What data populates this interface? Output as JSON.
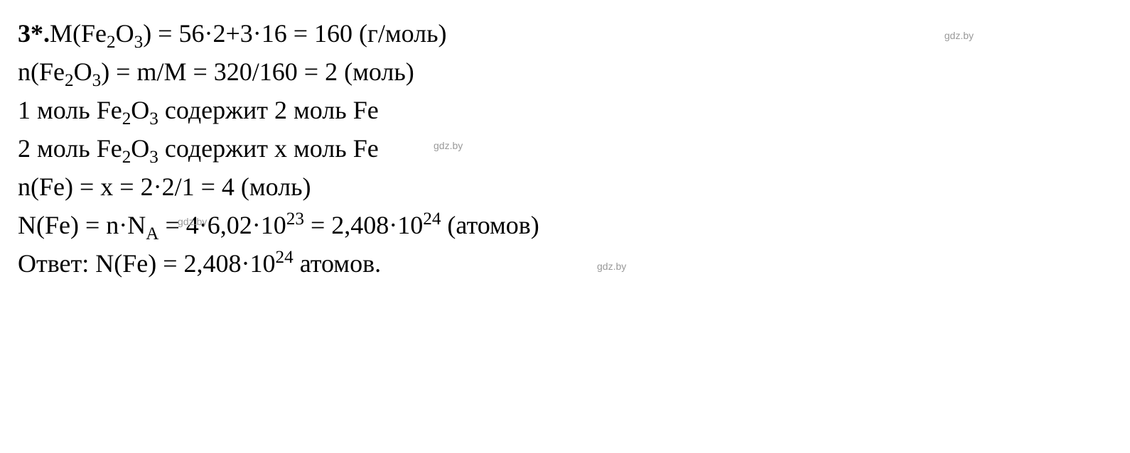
{
  "problem_number": "3*.",
  "lines": {
    "l1_part1": "М(Fe",
    "l1_sub1": "2",
    "l1_part2": "O",
    "l1_sub2": "3",
    "l1_part3": ") = 56·2+3·16 = 160 (г/моль)",
    "l2_part1": "n(Fe",
    "l2_sub1": "2",
    "l2_part2": "O",
    "l2_sub2": "3",
    "l2_part3": ") = m/M = 320/160 = 2 (моль)",
    "l3_part1": "1 моль Fe",
    "l3_sub1": "2",
    "l3_part2": "O",
    "l3_sub2": "3",
    "l3_part3": " содержит 2 моль Fe",
    "l4_part1": "2 моль Fe",
    "l4_sub1": "2",
    "l4_part2": "O",
    "l4_sub2": "3",
    "l4_part3": " содержит х моль Fe",
    "l5": "n(Fe) = x = 2·2/1 = 4 (моль)",
    "l6_part1": "N(Fe) = n·N",
    "l6_sub1": "A",
    "l6_part2": " = 4·6,02·10",
    "l6_sup1": "23",
    "l6_part3": " = 2,408·10",
    "l6_sup2": "24",
    "l6_part4": " (атомов)",
    "l7_part1": "Ответ: N(Fe) = 2,408·10",
    "l7_sup1": "24",
    "l7_part2": " атомов."
  },
  "watermark_text": "gdz.by",
  "styling": {
    "background_color": "#ffffff",
    "text_color": "#000000",
    "watermark_color": "#999999",
    "font_family": "Times New Roman",
    "font_size_pt": 36,
    "watermark_font_size": 14
  }
}
